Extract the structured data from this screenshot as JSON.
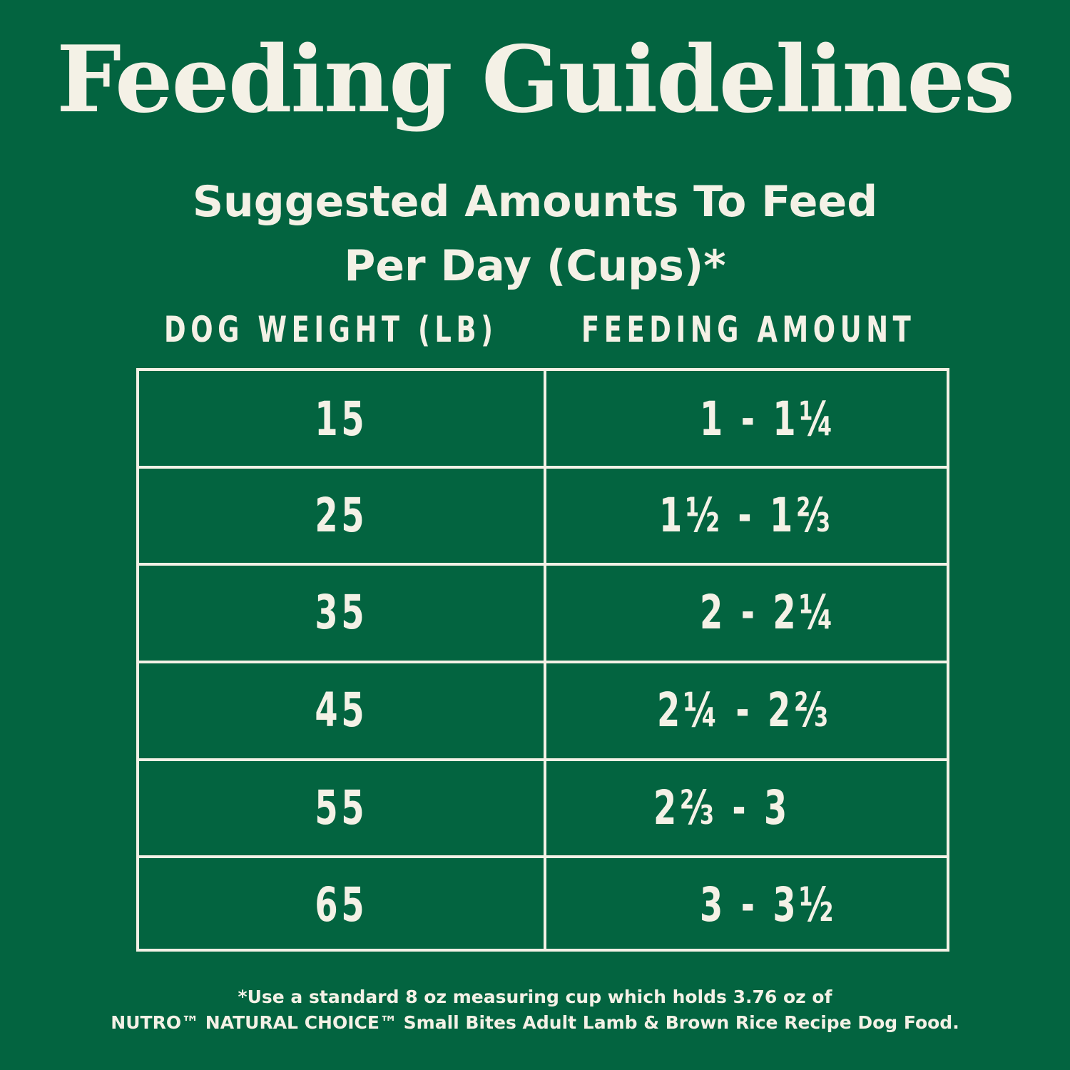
{
  "title": "Feeding Guidelines",
  "subtitle": {
    "line1": "Suggested Amounts To Feed",
    "line2": "Per Day (Cups)*"
  },
  "table": {
    "headers": {
      "weight": "DOG WEIGHT (LB)",
      "amount": "FEEDING AMOUNT"
    },
    "rows": [
      {
        "weight": "15",
        "amount": "1 - 1¼"
      },
      {
        "weight": "25",
        "amount": "1½ - 1⅔"
      },
      {
        "weight": "35",
        "amount": "2 - 2¼"
      },
      {
        "weight": "45",
        "amount": "2¼ - 2⅔"
      },
      {
        "weight": "55",
        "amount": "2⅔ - 3"
      },
      {
        "weight": "65",
        "amount": "3 - 3½"
      }
    ]
  },
  "footnote": {
    "line1": "*Use a standard 8 oz measuring cup which holds 3.76 oz of",
    "line2": "NUTRO™ NATURAL CHOICE™ Small Bites Adult Lamb & Brown Rice Recipe Dog Food."
  },
  "colors": {
    "background": "#036440",
    "text": "#f4f1e6"
  }
}
